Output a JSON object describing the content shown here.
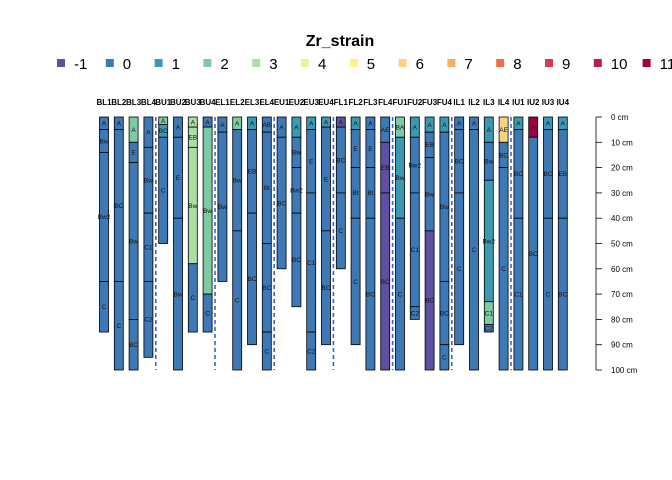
{
  "chart_data": {
    "type": "soil-profile-sketch",
    "title": "",
    "legend": {
      "title": "Zr_strain",
      "items": [
        {
          "label": "-1",
          "color": "#5E4FA2"
        },
        {
          "label": "0",
          "color": "#3E79B5"
        },
        {
          "label": "1",
          "color": "#3B9AB2"
        },
        {
          "label": "2",
          "color": "#7CCBA2"
        },
        {
          "label": "3",
          "color": "#ABDDA4"
        },
        {
          "label": "4",
          "color": "#E6F598"
        },
        {
          "label": "5",
          "color": "#FEF08A"
        },
        {
          "label": "6",
          "color": "#FDD382"
        },
        {
          "label": "7",
          "color": "#FDAE61"
        },
        {
          "label": "8",
          "color": "#F46D43"
        },
        {
          "label": "9",
          "color": "#D53E4F"
        },
        {
          "label": "10",
          "color": "#B51F4A"
        },
        {
          "label": "11",
          "color": "#9E0142"
        }
      ]
    },
    "depth_axis": {
      "unit": "cm",
      "ylim": [
        0,
        100
      ],
      "ticks": [
        0,
        10,
        20,
        30,
        40,
        50,
        60,
        70,
        80,
        90,
        100
      ],
      "tick_labels": [
        "0 cm",
        "10 cm",
        "20 cm",
        "30 cm",
        "40 cm",
        "50 cm",
        "60 cm",
        "70 cm",
        "80 cm",
        "90 cm",
        "100 cm"
      ]
    },
    "group_dividers_after_profile": [
      4,
      8,
      12,
      16,
      20,
      24,
      28
    ],
    "profiles": [
      {
        "id": "BL1",
        "horizons": [
          {
            "name": "A",
            "top": 0,
            "bottom": 5,
            "value": 0
          },
          {
            "name": "Bw",
            "top": 5,
            "bottom": 14,
            "value": 0
          },
          {
            "name": "Bw2",
            "top": 14,
            "bottom": 65,
            "value": 0
          },
          {
            "name": "C",
            "top": 65,
            "bottom": 85,
            "value": 0
          }
        ]
      },
      {
        "id": "BL2",
        "horizons": [
          {
            "name": "A",
            "top": 0,
            "bottom": 5,
            "value": 0
          },
          {
            "name": "BC",
            "top": 5,
            "bottom": 65,
            "value": 0
          },
          {
            "name": "C",
            "top": 65,
            "bottom": 100,
            "value": 0
          }
        ]
      },
      {
        "id": "BL3",
        "horizons": [
          {
            "name": "A",
            "top": 0,
            "bottom": 10,
            "value": 2
          },
          {
            "name": "E",
            "top": 10,
            "bottom": 18,
            "value": 0
          },
          {
            "name": "Bw",
            "top": 18,
            "bottom": 80,
            "value": 0
          },
          {
            "name": "BC",
            "top": 80,
            "bottom": 100,
            "value": 0
          }
        ]
      },
      {
        "id": "BL4",
        "horizons": [
          {
            "name": "A",
            "top": 0,
            "bottom": 12,
            "value": 0
          },
          {
            "name": "Bw",
            "top": 12,
            "bottom": 38,
            "value": 0
          },
          {
            "name": "C1",
            "top": 38,
            "bottom": 65,
            "value": 0
          },
          {
            "name": "C2",
            "top": 65,
            "bottom": 95,
            "value": 0
          }
        ]
      },
      {
        "id": "BU1",
        "horizons": [
          {
            "name": "A",
            "top": 0,
            "bottom": 3,
            "value": 2
          },
          {
            "name": "BC",
            "top": 3,
            "bottom": 8,
            "value": 1
          },
          {
            "name": "C",
            "top": 8,
            "bottom": 50,
            "value": 0
          }
        ]
      },
      {
        "id": "BU2",
        "horizons": [
          {
            "name": "A",
            "top": 0,
            "bottom": 8,
            "value": 0
          },
          {
            "name": "E",
            "top": 8,
            "bottom": 40,
            "value": 0
          },
          {
            "name": "Bw",
            "top": 40,
            "bottom": 100,
            "value": 0
          }
        ]
      },
      {
        "id": "BU3",
        "horizons": [
          {
            "name": "A",
            "top": 0,
            "bottom": 4,
            "value": 3
          },
          {
            "name": "EB",
            "top": 4,
            "bottom": 12,
            "value": 3
          },
          {
            "name": "Bw",
            "top": 12,
            "bottom": 58,
            "value": 3
          },
          {
            "name": "C",
            "top": 58,
            "bottom": 85,
            "value": 0
          }
        ]
      },
      {
        "id": "BU4",
        "horizons": [
          {
            "name": "A",
            "top": 0,
            "bottom": 4,
            "value": 0
          },
          {
            "name": "Bw",
            "top": 4,
            "bottom": 70,
            "value": 2
          },
          {
            "name": "C",
            "top": 70,
            "bottom": 85,
            "value": 0
          }
        ]
      },
      {
        "id": "EL1",
        "horizons": [
          {
            "name": "A",
            "top": 0,
            "bottom": 6,
            "value": 0
          },
          {
            "name": "Bw",
            "top": 6,
            "bottom": 65,
            "value": 0
          }
        ]
      },
      {
        "id": "EL2",
        "horizons": [
          {
            "name": "A",
            "top": 0,
            "bottom": 5,
            "value": 2
          },
          {
            "name": "Bw",
            "top": 5,
            "bottom": 45,
            "value": 0
          },
          {
            "name": "C",
            "top": 45,
            "bottom": 100,
            "value": 0
          }
        ]
      },
      {
        "id": "EL3",
        "horizons": [
          {
            "name": "A",
            "top": 0,
            "bottom": 5,
            "value": 1
          },
          {
            "name": "EB",
            "top": 5,
            "bottom": 38,
            "value": 0
          },
          {
            "name": "BC",
            "top": 38,
            "bottom": 90,
            "value": 0
          }
        ]
      },
      {
        "id": "EL4",
        "horizons": [
          {
            "name": "AB",
            "top": 0,
            "bottom": 6,
            "value": 0
          },
          {
            "name": "Bt",
            "top": 6,
            "bottom": 50,
            "value": 0
          },
          {
            "name": "BC",
            "top": 50,
            "bottom": 85,
            "value": 0
          },
          {
            "name": "C",
            "top": 85,
            "bottom": 100,
            "value": 0
          }
        ]
      },
      {
        "id": "EU1",
        "horizons": [
          {
            "name": "A",
            "top": 0,
            "bottom": 8,
            "value": 0
          },
          {
            "name": "BC",
            "top": 8,
            "bottom": 60,
            "value": 0
          }
        ]
      },
      {
        "id": "EU2",
        "horizons": [
          {
            "name": "A",
            "top": 0,
            "bottom": 8,
            "value": 1
          },
          {
            "name": "Bw",
            "top": 8,
            "bottom": 20,
            "value": 0
          },
          {
            "name": "Bw2",
            "top": 20,
            "bottom": 38,
            "value": 0
          },
          {
            "name": "BC",
            "top": 38,
            "bottom": 75,
            "value": 0
          }
        ]
      },
      {
        "id": "EU3",
        "horizons": [
          {
            "name": "A",
            "top": 0,
            "bottom": 5,
            "value": 1
          },
          {
            "name": "E",
            "top": 5,
            "bottom": 30,
            "value": 0
          },
          {
            "name": "C1",
            "top": 30,
            "bottom": 85,
            "value": 0
          },
          {
            "name": "C2",
            "top": 85,
            "bottom": 100,
            "value": 0
          }
        ]
      },
      {
        "id": "EU4",
        "horizons": [
          {
            "name": "A",
            "top": 0,
            "bottom": 4,
            "value": 1
          },
          {
            "name": "E",
            "top": 4,
            "bottom": 45,
            "value": 0
          },
          {
            "name": "BC",
            "top": 45,
            "bottom": 90,
            "value": 0
          }
        ]
      },
      {
        "id": "FL1",
        "horizons": [
          {
            "name": "A",
            "top": 0,
            "bottom": 4,
            "value": -1
          },
          {
            "name": "BC",
            "top": 4,
            "bottom": 30,
            "value": 0
          },
          {
            "name": "C",
            "top": 30,
            "bottom": 60,
            "value": 0
          }
        ]
      },
      {
        "id": "FL2",
        "horizons": [
          {
            "name": "A",
            "top": 0,
            "bottom": 5,
            "value": 1
          },
          {
            "name": "E",
            "top": 5,
            "bottom": 20,
            "value": 0
          },
          {
            "name": "Bt",
            "top": 20,
            "bottom": 40,
            "value": 0
          },
          {
            "name": "C",
            "top": 40,
            "bottom": 90,
            "value": 0
          }
        ]
      },
      {
        "id": "FL3",
        "horizons": [
          {
            "name": "A",
            "top": 0,
            "bottom": 5,
            "value": 0
          },
          {
            "name": "E",
            "top": 5,
            "bottom": 20,
            "value": 0
          },
          {
            "name": "Bt",
            "top": 20,
            "bottom": 40,
            "value": 0
          },
          {
            "name": "BC",
            "top": 40,
            "bottom": 100,
            "value": 0
          }
        ]
      },
      {
        "id": "FL4",
        "horizons": [
          {
            "name": "AE",
            "top": 0,
            "bottom": 10,
            "value": 0
          },
          {
            "name": "EB",
            "top": 10,
            "bottom": 30,
            "value": -1
          },
          {
            "name": "BC",
            "top": 30,
            "bottom": 100,
            "value": -1
          }
        ]
      },
      {
        "id": "FU1",
        "horizons": [
          {
            "name": "BA",
            "top": 0,
            "bottom": 8,
            "value": 2
          },
          {
            "name": "Bw",
            "top": 8,
            "bottom": 40,
            "value": 1
          },
          {
            "name": "C",
            "top": 40,
            "bottom": 100,
            "value": 0
          }
        ]
      },
      {
        "id": "FU2",
        "horizons": [
          {
            "name": "A",
            "top": 0,
            "bottom": 8,
            "value": 1
          },
          {
            "name": "Bw2",
            "top": 8,
            "bottom": 30,
            "value": 0
          },
          {
            "name": "C1",
            "top": 30,
            "bottom": 75,
            "value": 0
          },
          {
            "name": "C2",
            "top": 75,
            "bottom": 80,
            "value": 0
          }
        ]
      },
      {
        "id": "FU3",
        "horizons": [
          {
            "name": "A",
            "top": 0,
            "bottom": 6,
            "value": 1
          },
          {
            "name": "EB",
            "top": 6,
            "bottom": 16,
            "value": 0
          },
          {
            "name": "Bw",
            "top": 16,
            "bottom": 45,
            "value": 0
          },
          {
            "name": "BC",
            "top": 45,
            "bottom": 100,
            "value": -1
          }
        ]
      },
      {
        "id": "FU4",
        "horizons": [
          {
            "name": "A",
            "top": 0,
            "bottom": 6,
            "value": 1
          },
          {
            "name": "Bw",
            "top": 6,
            "bottom": 65,
            "value": 0
          },
          {
            "name": "BC",
            "top": 65,
            "bottom": 90,
            "value": 0
          },
          {
            "name": "C",
            "top": 90,
            "bottom": 100,
            "value": 0
          }
        ]
      },
      {
        "id": "IL1",
        "horizons": [
          {
            "name": "A",
            "top": 0,
            "bottom": 5,
            "value": 0
          },
          {
            "name": "BC",
            "top": 5,
            "bottom": 30,
            "value": 0
          },
          {
            "name": "C",
            "top": 30,
            "bottom": 90,
            "value": 0
          }
        ]
      },
      {
        "id": "IL2",
        "horizons": [
          {
            "name": "A",
            "top": 0,
            "bottom": 5,
            "value": 0
          },
          {
            "name": "C",
            "top": 5,
            "bottom": 100,
            "value": 0
          }
        ]
      },
      {
        "id": "IL3",
        "horizons": [
          {
            "name": "A",
            "top": 0,
            "bottom": 10,
            "value": 1
          },
          {
            "name": "Bw",
            "top": 10,
            "bottom": 25,
            "value": 0
          },
          {
            "name": "Bw2",
            "top": 25,
            "bottom": 73,
            "value": 1
          },
          {
            "name": "C1",
            "top": 73,
            "bottom": 82,
            "value": 2
          },
          {
            "name": "C2",
            "top": 82,
            "bottom": 85,
            "value": 0
          }
        ]
      },
      {
        "id": "IL4",
        "horizons": [
          {
            "name": "AE",
            "top": 0,
            "bottom": 10,
            "value": 6
          },
          {
            "name": "BC",
            "top": 10,
            "bottom": 20,
            "value": 0
          },
          {
            "name": "C",
            "top": 20,
            "bottom": 100,
            "value": 0
          }
        ]
      },
      {
        "id": "IU1",
        "horizons": [
          {
            "name": "A",
            "top": 0,
            "bottom": 5,
            "value": 1
          },
          {
            "name": "BC",
            "top": 5,
            "bottom": 40,
            "value": 0
          },
          {
            "name": "C1",
            "top": 40,
            "bottom": 100,
            "value": 0
          }
        ]
      },
      {
        "id": "IU2",
        "horizons": [
          {
            "name": "A",
            "top": 0,
            "bottom": 8,
            "value": 11
          },
          {
            "name": "BC",
            "top": 8,
            "bottom": 100,
            "value": 0
          }
        ]
      },
      {
        "id": "IU3",
        "horizons": [
          {
            "name": "A",
            "top": 0,
            "bottom": 5,
            "value": 1
          },
          {
            "name": "BC",
            "top": 5,
            "bottom": 40,
            "value": 0
          },
          {
            "name": "C",
            "top": 40,
            "bottom": 100,
            "value": 0
          }
        ]
      },
      {
        "id": "IU4",
        "horizons": [
          {
            "name": "A",
            "top": 0,
            "bottom": 5,
            "value": 1
          },
          {
            "name": "EB",
            "top": 5,
            "bottom": 40,
            "value": 0
          },
          {
            "name": "BC",
            "top": 40,
            "bottom": 100,
            "value": 0
          }
        ]
      }
    ],
    "grid": false
  }
}
